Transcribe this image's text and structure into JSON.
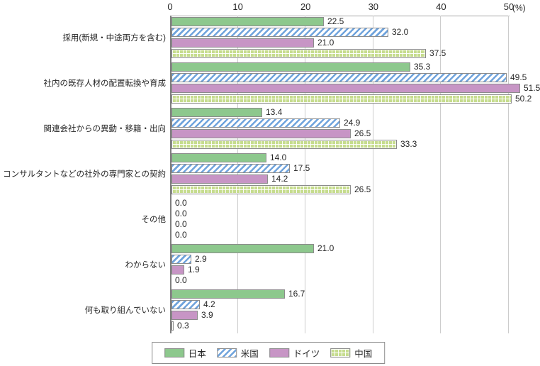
{
  "chart_data": {
    "type": "bar",
    "orientation": "horizontal",
    "title": "",
    "unit_label": "(%)",
    "xlim": [
      0,
      50
    ],
    "ticks": [
      0,
      10,
      20,
      30,
      40,
      50
    ],
    "grid": true,
    "legend_position": "bottom",
    "value_label_decimals": 1,
    "categories": [
      "採用(新規・中途両方を含む)",
      "社内の既存人材の配置転換や育成",
      "関連会社からの異動・移籍・出向",
      "コンサルタントなどの社外の専門家との契約",
      "その他",
      "わからない",
      "何も取り組んでいない"
    ],
    "series": [
      {
        "name": "日本",
        "color": "#8dc88d",
        "pattern": "solid",
        "values": [
          22.5,
          35.3,
          13.4,
          14.0,
          0.0,
          21.0,
          16.7
        ]
      },
      {
        "name": "米国",
        "color": "#6fa3dc",
        "pattern": "diagonal-stripes",
        "values": [
          32.0,
          49.5,
          24.9,
          17.5,
          0.0,
          2.9,
          4.2
        ]
      },
      {
        "name": "ドイツ",
        "color": "#c795c5",
        "pattern": "solid",
        "values": [
          21.0,
          51.5,
          26.5,
          14.2,
          0.0,
          1.9,
          3.9
        ]
      },
      {
        "name": "中国",
        "color": "#c6dc8e",
        "pattern": "crosshatch",
        "values": [
          37.5,
          50.2,
          33.3,
          26.5,
          0.0,
          0.0,
          0.3
        ]
      }
    ],
    "axis_color": "#7f7f7f",
    "gridline_color": "#cccccc",
    "bar_border_color": "#8c8c8c",
    "text_color": "#262626"
  }
}
